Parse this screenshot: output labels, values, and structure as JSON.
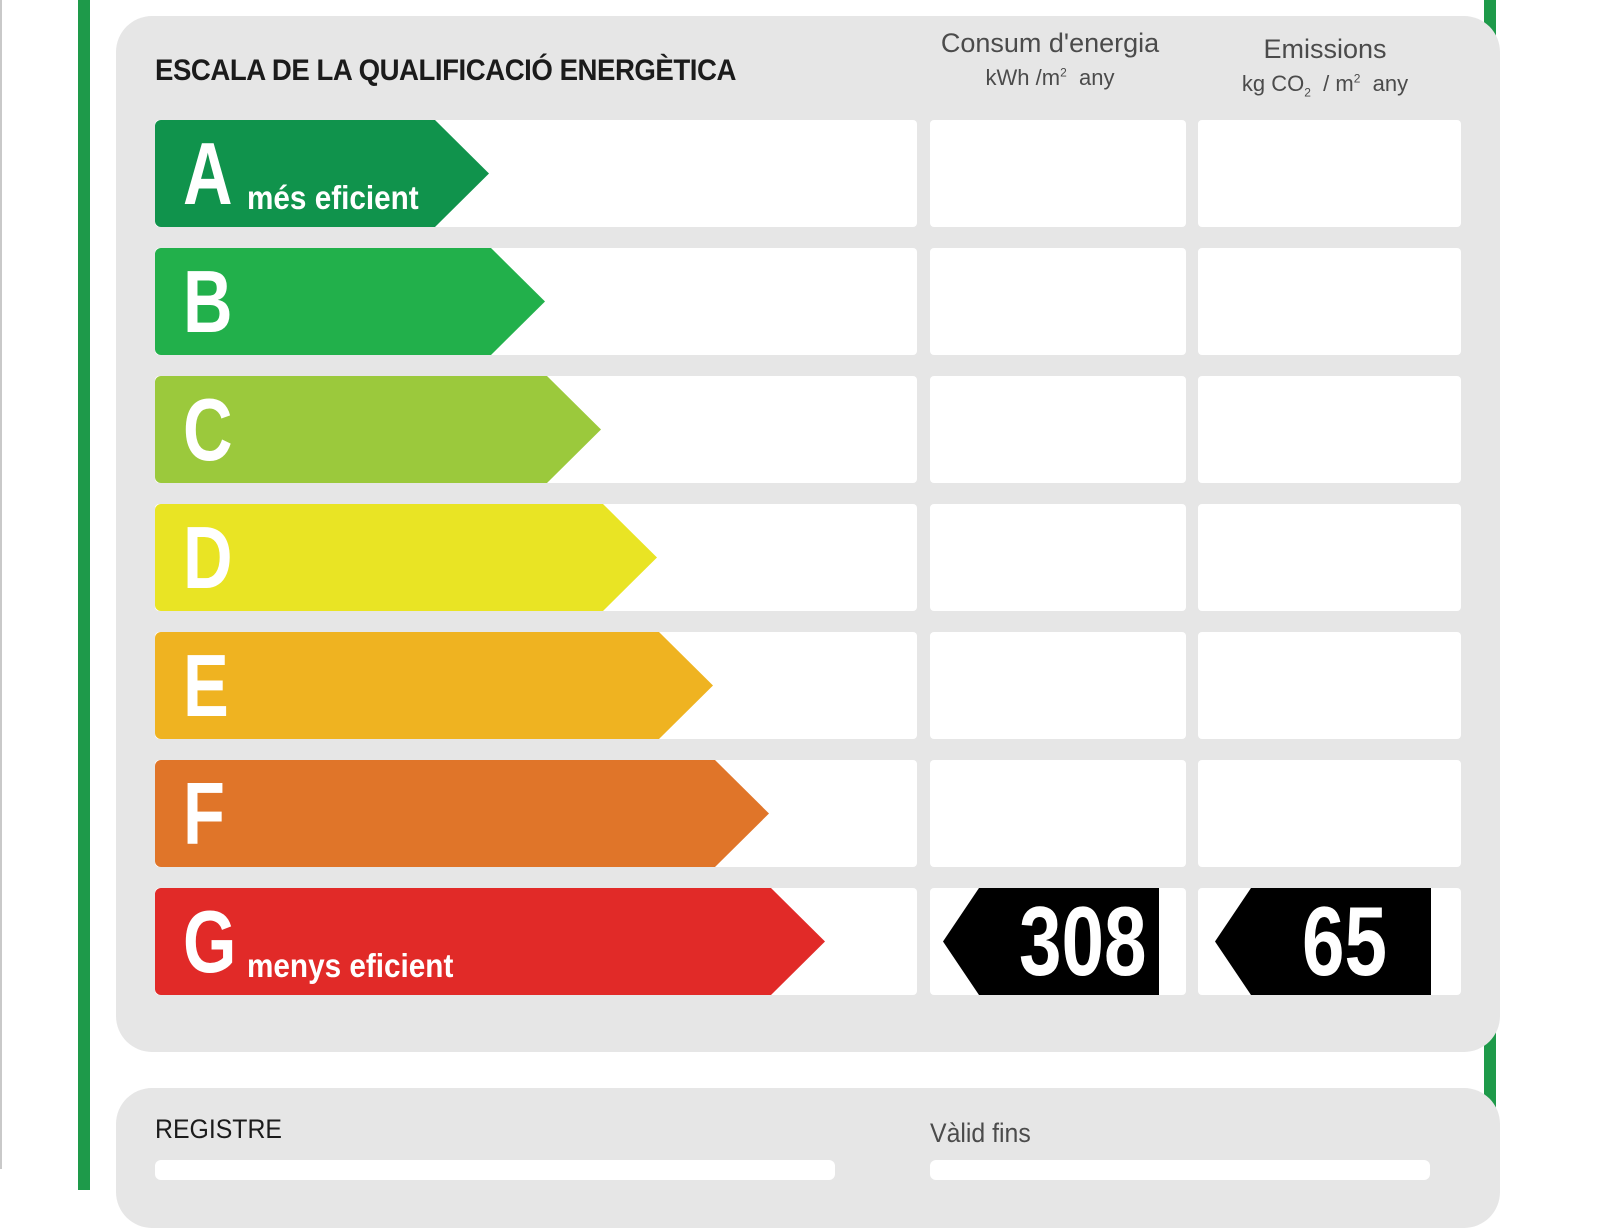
{
  "scale": {
    "title": "ESCALA DE LA QUALIFICACIÓ ENERGÈTICA",
    "consum_title": "Consum d'energia",
    "consum_unit_a": "kWh /m",
    "consum_unit_sup": "2",
    "consum_unit_b": "any",
    "emis_title": "Emissions",
    "emis_unit_a": "kg CO",
    "emis_unit_sub": "2",
    "emis_unit_mid": " / m",
    "emis_unit_sup": "2",
    "emis_unit_b": "any"
  },
  "ratings": [
    {
      "letter": "A",
      "label": "més eficient",
      "color": "#10934c"
    },
    {
      "letter": "B",
      "label": "",
      "color": "#22b04b"
    },
    {
      "letter": "C",
      "label": "",
      "color": "#9bc93c"
    },
    {
      "letter": "D",
      "label": "",
      "color": "#e9e424"
    },
    {
      "letter": "E",
      "label": "",
      "color": "#efb321"
    },
    {
      "letter": "F",
      "label": "",
      "color": "#e07529"
    },
    {
      "letter": "G",
      "label": "menys eficient",
      "color": "#e12a28"
    }
  ],
  "result": {
    "rating": "G",
    "consum_value": "308",
    "emis_value": "65"
  },
  "footer": {
    "registre_label": "REGISTRE",
    "valid_label": "Vàlid fins"
  }
}
